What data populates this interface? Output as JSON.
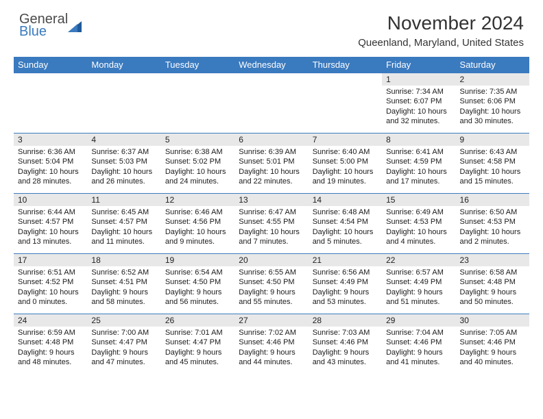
{
  "logo": {
    "text1": "General",
    "text2": "Blue"
  },
  "title": "November 2024",
  "location": "Queenland, Maryland, United States",
  "colors": {
    "header_bg": "#3a7abf",
    "header_text": "#ffffff",
    "daynum_bg": "#e8e8e8",
    "border": "#3a7abf",
    "background": "#ffffff",
    "text": "#1a1a1a",
    "logo_gray": "#4a4a4a",
    "logo_blue": "#3a7abf"
  },
  "weekdays": [
    "Sunday",
    "Monday",
    "Tuesday",
    "Wednesday",
    "Thursday",
    "Friday",
    "Saturday"
  ],
  "weeks": [
    [
      {
        "n": "",
        "sr": "",
        "ss": "",
        "dl": ""
      },
      {
        "n": "",
        "sr": "",
        "ss": "",
        "dl": ""
      },
      {
        "n": "",
        "sr": "",
        "ss": "",
        "dl": ""
      },
      {
        "n": "",
        "sr": "",
        "ss": "",
        "dl": ""
      },
      {
        "n": "",
        "sr": "",
        "ss": "",
        "dl": ""
      },
      {
        "n": "1",
        "sr": "7:34 AM",
        "ss": "6:07 PM",
        "dl": "10 hours and 32 minutes."
      },
      {
        "n": "2",
        "sr": "7:35 AM",
        "ss": "6:06 PM",
        "dl": "10 hours and 30 minutes."
      }
    ],
    [
      {
        "n": "3",
        "sr": "6:36 AM",
        "ss": "5:04 PM",
        "dl": "10 hours and 28 minutes."
      },
      {
        "n": "4",
        "sr": "6:37 AM",
        "ss": "5:03 PM",
        "dl": "10 hours and 26 minutes."
      },
      {
        "n": "5",
        "sr": "6:38 AM",
        "ss": "5:02 PM",
        "dl": "10 hours and 24 minutes."
      },
      {
        "n": "6",
        "sr": "6:39 AM",
        "ss": "5:01 PM",
        "dl": "10 hours and 22 minutes."
      },
      {
        "n": "7",
        "sr": "6:40 AM",
        "ss": "5:00 PM",
        "dl": "10 hours and 19 minutes."
      },
      {
        "n": "8",
        "sr": "6:41 AM",
        "ss": "4:59 PM",
        "dl": "10 hours and 17 minutes."
      },
      {
        "n": "9",
        "sr": "6:43 AM",
        "ss": "4:58 PM",
        "dl": "10 hours and 15 minutes."
      }
    ],
    [
      {
        "n": "10",
        "sr": "6:44 AM",
        "ss": "4:57 PM",
        "dl": "10 hours and 13 minutes."
      },
      {
        "n": "11",
        "sr": "6:45 AM",
        "ss": "4:57 PM",
        "dl": "10 hours and 11 minutes."
      },
      {
        "n": "12",
        "sr": "6:46 AM",
        "ss": "4:56 PM",
        "dl": "10 hours and 9 minutes."
      },
      {
        "n": "13",
        "sr": "6:47 AM",
        "ss": "4:55 PM",
        "dl": "10 hours and 7 minutes."
      },
      {
        "n": "14",
        "sr": "6:48 AM",
        "ss": "4:54 PM",
        "dl": "10 hours and 5 minutes."
      },
      {
        "n": "15",
        "sr": "6:49 AM",
        "ss": "4:53 PM",
        "dl": "10 hours and 4 minutes."
      },
      {
        "n": "16",
        "sr": "6:50 AM",
        "ss": "4:53 PM",
        "dl": "10 hours and 2 minutes."
      }
    ],
    [
      {
        "n": "17",
        "sr": "6:51 AM",
        "ss": "4:52 PM",
        "dl": "10 hours and 0 minutes."
      },
      {
        "n": "18",
        "sr": "6:52 AM",
        "ss": "4:51 PM",
        "dl": "9 hours and 58 minutes."
      },
      {
        "n": "19",
        "sr": "6:54 AM",
        "ss": "4:50 PM",
        "dl": "9 hours and 56 minutes."
      },
      {
        "n": "20",
        "sr": "6:55 AM",
        "ss": "4:50 PM",
        "dl": "9 hours and 55 minutes."
      },
      {
        "n": "21",
        "sr": "6:56 AM",
        "ss": "4:49 PM",
        "dl": "9 hours and 53 minutes."
      },
      {
        "n": "22",
        "sr": "6:57 AM",
        "ss": "4:49 PM",
        "dl": "9 hours and 51 minutes."
      },
      {
        "n": "23",
        "sr": "6:58 AM",
        "ss": "4:48 PM",
        "dl": "9 hours and 50 minutes."
      }
    ],
    [
      {
        "n": "24",
        "sr": "6:59 AM",
        "ss": "4:48 PM",
        "dl": "9 hours and 48 minutes."
      },
      {
        "n": "25",
        "sr": "7:00 AM",
        "ss": "4:47 PM",
        "dl": "9 hours and 47 minutes."
      },
      {
        "n": "26",
        "sr": "7:01 AM",
        "ss": "4:47 PM",
        "dl": "9 hours and 45 minutes."
      },
      {
        "n": "27",
        "sr": "7:02 AM",
        "ss": "4:46 PM",
        "dl": "9 hours and 44 minutes."
      },
      {
        "n": "28",
        "sr": "7:03 AM",
        "ss": "4:46 PM",
        "dl": "9 hours and 43 minutes."
      },
      {
        "n": "29",
        "sr": "7:04 AM",
        "ss": "4:46 PM",
        "dl": "9 hours and 41 minutes."
      },
      {
        "n": "30",
        "sr": "7:05 AM",
        "ss": "4:46 PM",
        "dl": "9 hours and 40 minutes."
      }
    ]
  ],
  "labels": {
    "sunrise": "Sunrise:",
    "sunset": "Sunset:",
    "daylight": "Daylight:"
  }
}
